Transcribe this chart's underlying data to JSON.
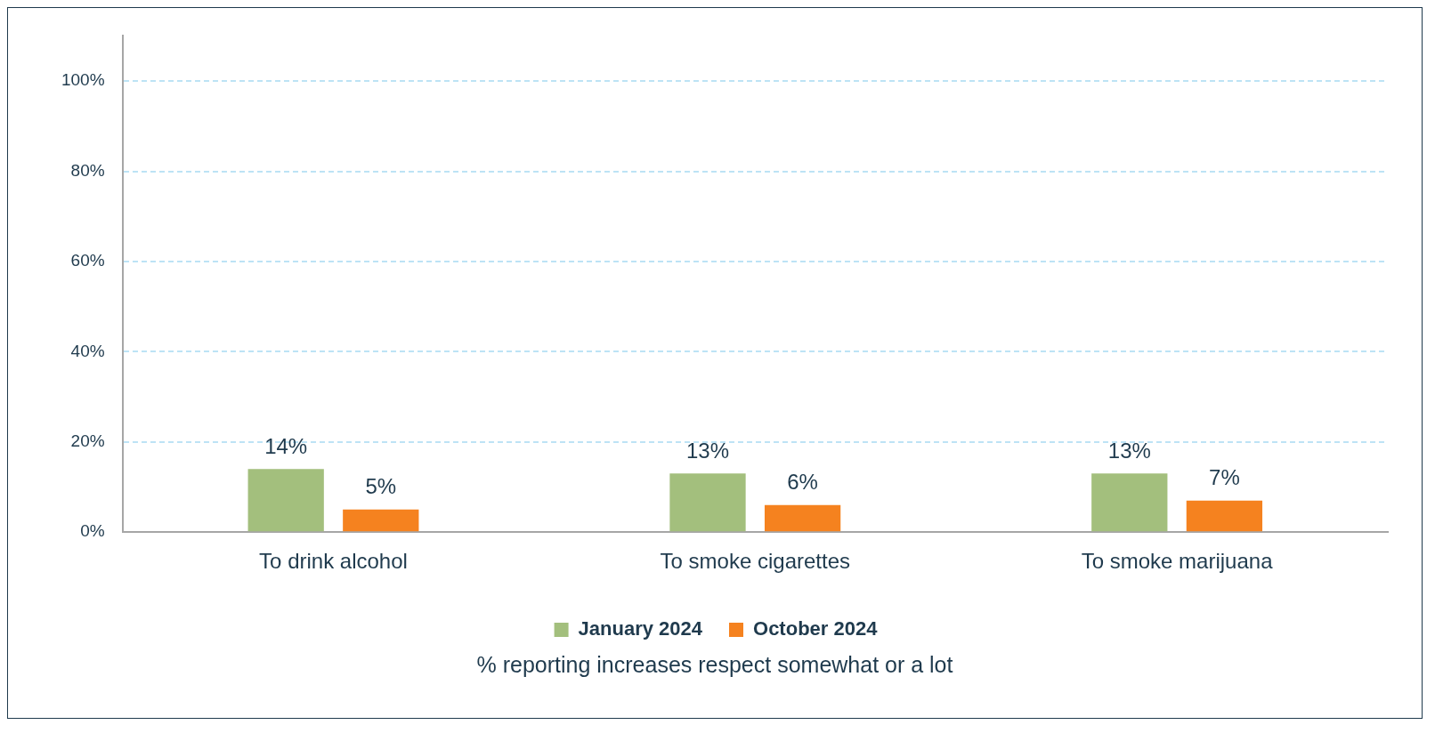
{
  "chart_data": {
    "type": "bar",
    "xlabel": "% reporting increases respect somewhat or a lot",
    "categories": [
      "To drink alcohol",
      "To smoke cigarettes",
      "To smoke marijuana"
    ],
    "series": [
      {
        "name": "January 2024",
        "color": "#a3bf7d",
        "values": [
          14,
          13,
          13
        ]
      },
      {
        "name": "October 2024",
        "color": "#f5821f",
        "values": [
          5,
          6,
          7
        ]
      }
    ],
    "ylim": [
      0,
      110
    ],
    "yticks": [
      {
        "value": 0,
        "label": "0%"
      },
      {
        "value": 20,
        "label": "20%"
      },
      {
        "value": 40,
        "label": "40%"
      },
      {
        "value": 60,
        "label": "60%"
      },
      {
        "value": 80,
        "label": "80%"
      },
      {
        "value": 100,
        "label": "100%"
      }
    ],
    "value_labels": [
      [
        "14%",
        "13%",
        "13%"
      ],
      [
        "5%",
        "6%",
        "7%"
      ]
    ],
    "grid": "y",
    "legend": "bottom"
  }
}
